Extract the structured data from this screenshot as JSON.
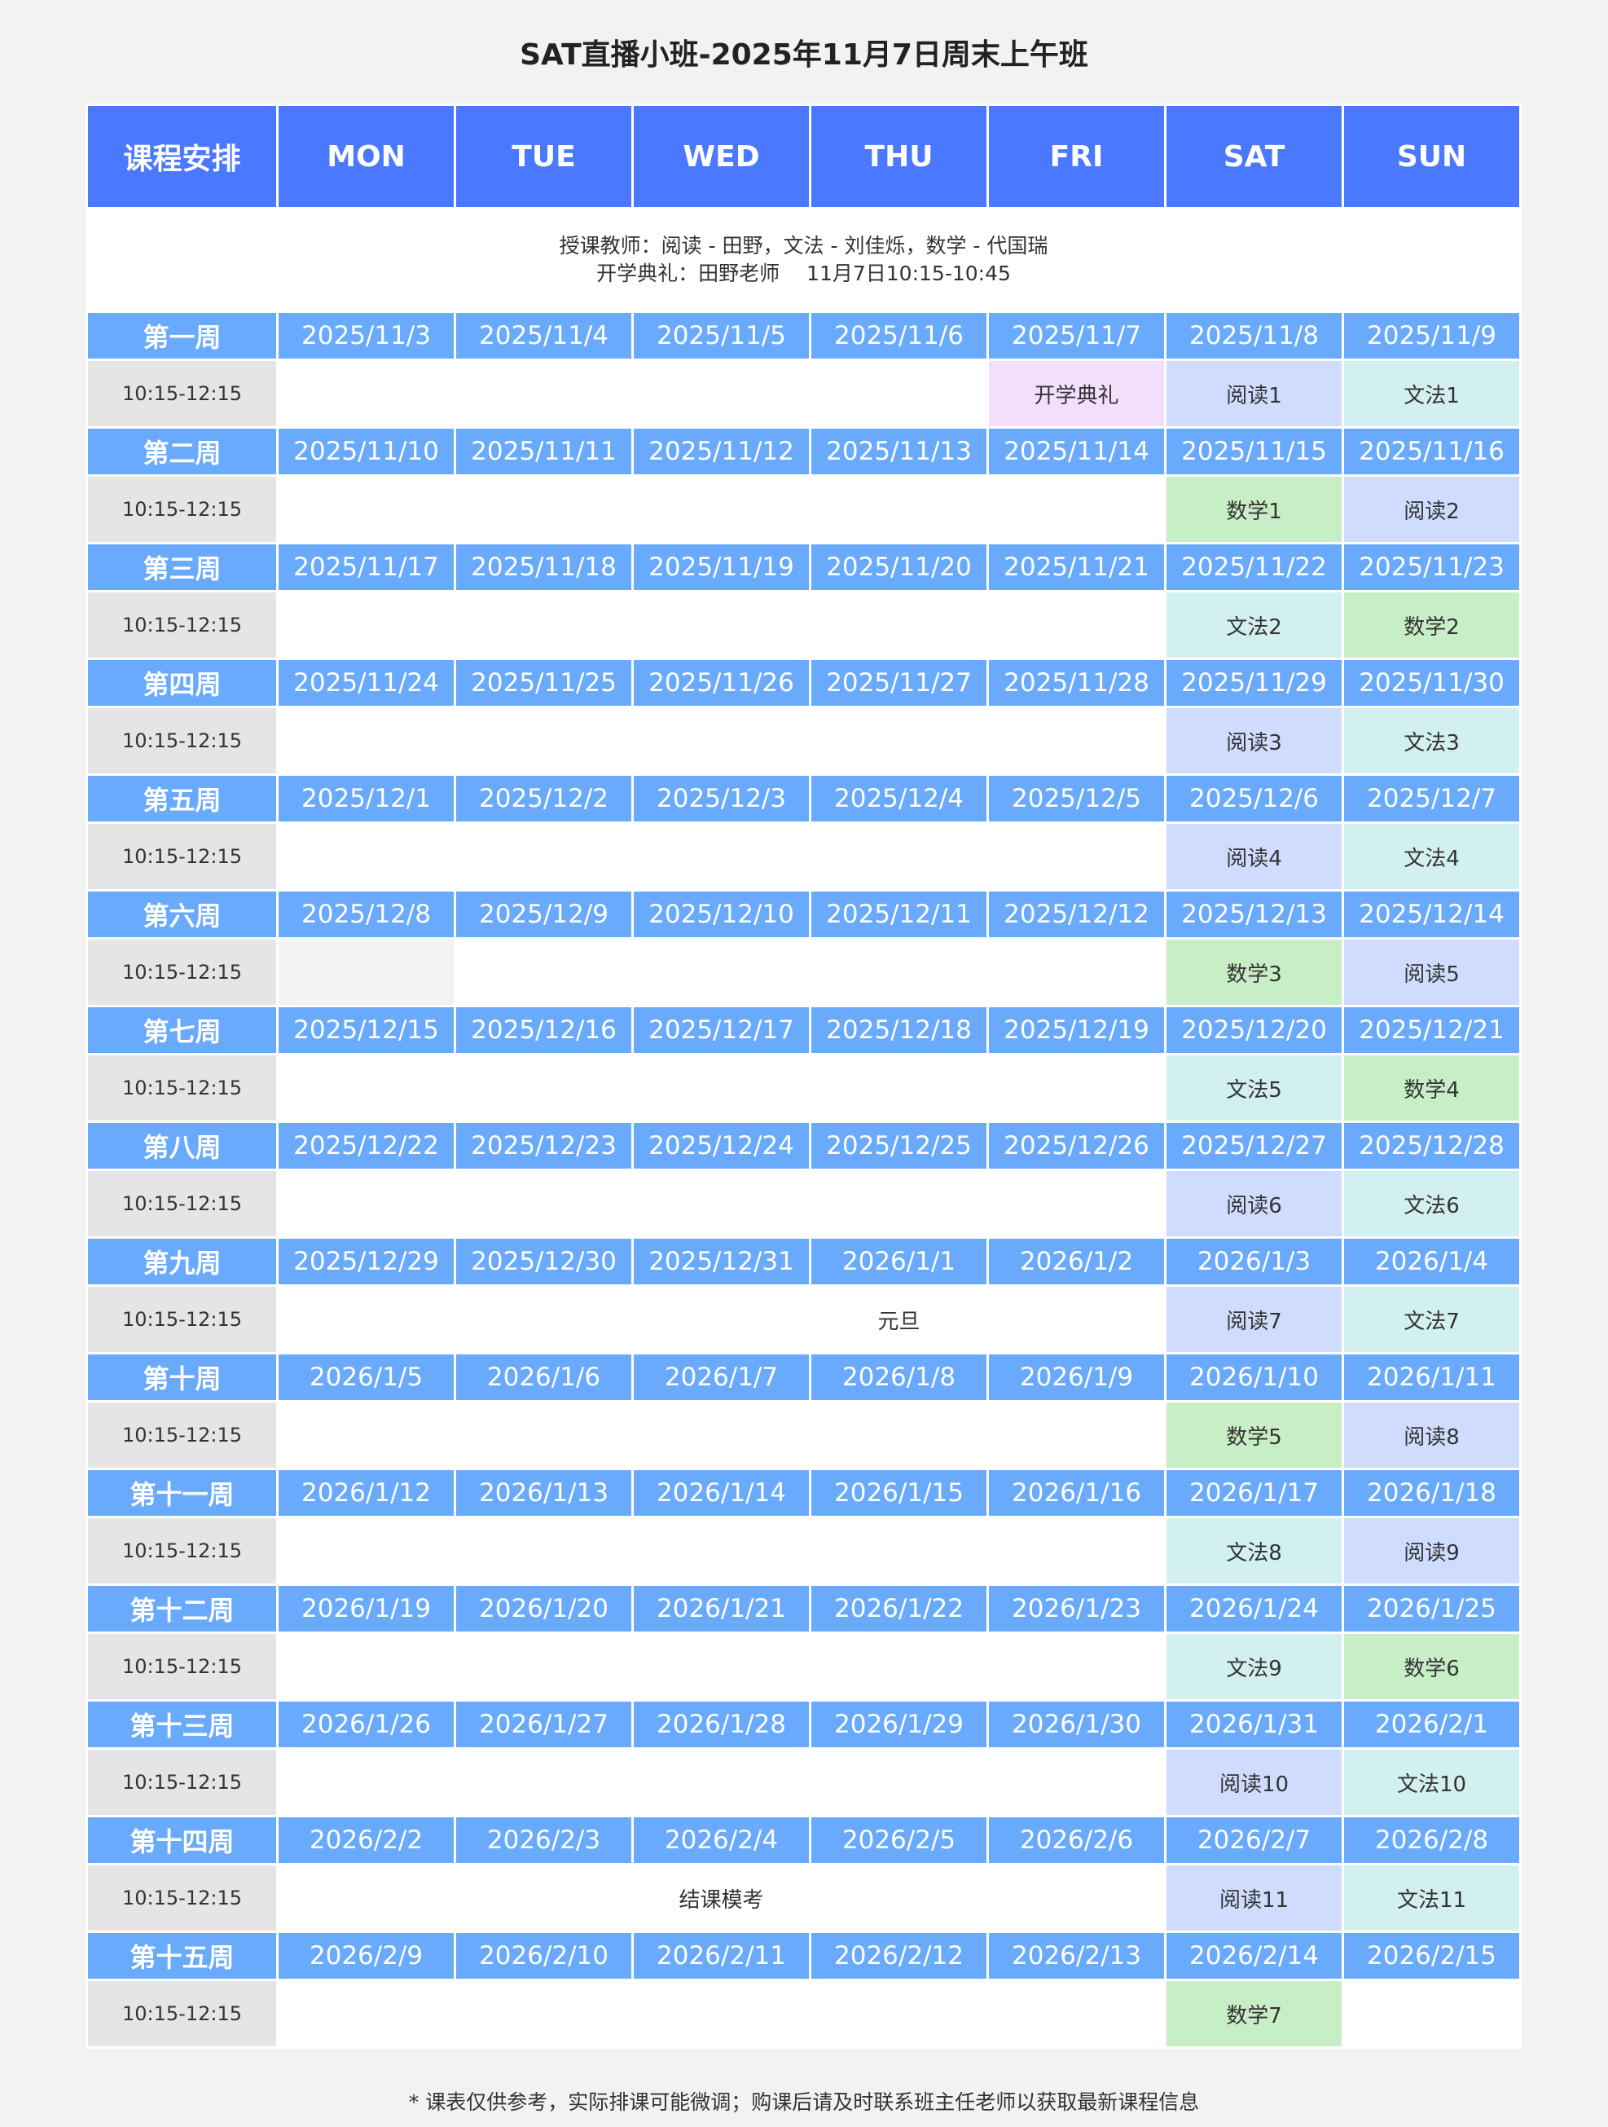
{
  "title": "SAT直播小班-2025年11月7日周末上午班",
  "header": {
    "corner": "课程安排",
    "days": [
      "MON",
      "TUE",
      "WED",
      "THU",
      "FRI",
      "SAT",
      "SUN"
    ]
  },
  "info": {
    "line1": "授课教师：阅读 - 田野，文法 - 刘佳烁，数学 - 代国瑞",
    "line2": "开学典礼：田野老师　 11月7日10:15-10:45"
  },
  "colors": {
    "header": "#4a78ff",
    "date_row": "#69aafd",
    "time_cell": "#e5e5e5",
    "reading": "#cfdcfd",
    "grammar": "#d2f0ef",
    "math": "#c8eec6",
    "ceremony": "#f3defb",
    "blocked": "#f2f2f2"
  },
  "time_slot": "10:15-12:15",
  "weeks": [
    {
      "label": "第一周",
      "dates": [
        "2025/11/3",
        "2025/11/4",
        "2025/11/5",
        "2025/11/6",
        "2025/11/7",
        "2025/11/8",
        "2025/11/9"
      ],
      "cells": [
        "",
        "",
        "",
        "",
        {
          "text": "开学典礼",
          "type": "ceremony"
        },
        {
          "text": "阅读1",
          "type": "reading"
        },
        {
          "text": "文法1",
          "type": "grammar"
        }
      ]
    },
    {
      "label": "第二周",
      "dates": [
        "2025/11/10",
        "2025/11/11",
        "2025/11/12",
        "2025/11/13",
        "2025/11/14",
        "2025/11/15",
        "2025/11/16"
      ],
      "cells": [
        "",
        "",
        "",
        "",
        "",
        {
          "text": "数学1",
          "type": "math"
        },
        {
          "text": "阅读2",
          "type": "reading"
        }
      ]
    },
    {
      "label": "第三周",
      "dates": [
        "2025/11/17",
        "2025/11/18",
        "2025/11/19",
        "2025/11/20",
        "2025/11/21",
        "2025/11/22",
        "2025/11/23"
      ],
      "cells": [
        "",
        "",
        "",
        "",
        "",
        {
          "text": "文法2",
          "type": "grammar"
        },
        {
          "text": "数学2",
          "type": "math"
        }
      ]
    },
    {
      "label": "第四周",
      "dates": [
        "2025/11/24",
        "2025/11/25",
        "2025/11/26",
        "2025/11/27",
        "2025/11/28",
        "2025/11/29",
        "2025/11/30"
      ],
      "cells": [
        "",
        "",
        "",
        "",
        "",
        {
          "text": "阅读3",
          "type": "reading"
        },
        {
          "text": "文法3",
          "type": "grammar"
        }
      ]
    },
    {
      "label": "第五周",
      "dates": [
        "2025/12/1",
        "2025/12/2",
        "2025/12/3",
        "2025/12/4",
        "2025/12/5",
        "2025/12/6",
        "2025/12/7"
      ],
      "cells": [
        "",
        "",
        "",
        "",
        "",
        {
          "text": "阅读4",
          "type": "reading"
        },
        {
          "text": "文法4",
          "type": "grammar"
        }
      ]
    },
    {
      "label": "第六周",
      "dates": [
        "2025/12/8",
        "2025/12/9",
        "2025/12/10",
        "2025/12/11",
        "2025/12/12",
        "2025/12/13",
        "2025/12/14"
      ],
      "cells": [
        {
          "text": "",
          "type": "blocked"
        },
        "",
        "",
        "",
        "",
        {
          "text": "数学3",
          "type": "math"
        },
        {
          "text": "阅读5",
          "type": "reading"
        }
      ]
    },
    {
      "label": "第七周",
      "dates": [
        "2025/12/15",
        "2025/12/16",
        "2025/12/17",
        "2025/12/18",
        "2025/12/19",
        "2025/12/20",
        "2025/12/21"
      ],
      "cells": [
        "",
        "",
        "",
        "",
        "",
        {
          "text": "文法5",
          "type": "grammar"
        },
        {
          "text": "数学4",
          "type": "math"
        }
      ]
    },
    {
      "label": "第八周",
      "dates": [
        "2025/12/22",
        "2025/12/23",
        "2025/12/24",
        "2025/12/25",
        "2025/12/26",
        "2025/12/27",
        "2025/12/28"
      ],
      "cells": [
        "",
        "",
        "",
        "",
        "",
        {
          "text": "阅读6",
          "type": "reading"
        },
        {
          "text": "文法6",
          "type": "grammar"
        }
      ]
    },
    {
      "label": "第九周",
      "dates": [
        "2025/12/29",
        "2025/12/30",
        "2025/12/31",
        "2026/1/1",
        "2026/1/2",
        "2026/1/3",
        "2026/1/4"
      ],
      "cells": [
        "",
        "",
        "",
        {
          "text": "元旦",
          "type": "plain"
        },
        "",
        {
          "text": "阅读7",
          "type": "reading"
        },
        {
          "text": "文法7",
          "type": "grammar"
        }
      ]
    },
    {
      "label": "第十周",
      "dates": [
        "2026/1/5",
        "2026/1/6",
        "2026/1/7",
        "2026/1/8",
        "2026/1/9",
        "2026/1/10",
        "2026/1/11"
      ],
      "cells": [
        "",
        "",
        "",
        "",
        "",
        {
          "text": "数学5",
          "type": "math"
        },
        {
          "text": "阅读8",
          "type": "reading"
        }
      ]
    },
    {
      "label": "第十一周",
      "dates": [
        "2026/1/12",
        "2026/1/13",
        "2026/1/14",
        "2026/1/15",
        "2026/1/16",
        "2026/1/17",
        "2026/1/18"
      ],
      "cells": [
        "",
        "",
        "",
        "",
        "",
        {
          "text": "文法8",
          "type": "grammar"
        },
        {
          "text": "阅读9",
          "type": "reading"
        }
      ]
    },
    {
      "label": "第十二周",
      "dates": [
        "2026/1/19",
        "2026/1/20",
        "2026/1/21",
        "2026/1/22",
        "2026/1/23",
        "2026/1/24",
        "2026/1/25"
      ],
      "cells": [
        "",
        "",
        "",
        "",
        "",
        {
          "text": "文法9",
          "type": "grammar"
        },
        {
          "text": "数学6",
          "type": "math"
        }
      ]
    },
    {
      "label": "第十三周",
      "dates": [
        "2026/1/26",
        "2026/1/27",
        "2026/1/28",
        "2026/1/29",
        "2026/1/30",
        "2026/1/31",
        "2026/2/1"
      ],
      "cells": [
        "",
        "",
        "",
        "",
        "",
        {
          "text": "阅读10",
          "type": "reading"
        },
        {
          "text": "文法10",
          "type": "grammar"
        }
      ]
    },
    {
      "label": "第十四周",
      "dates": [
        "2026/2/2",
        "2026/2/3",
        "2026/2/4",
        "2026/2/5",
        "2026/2/6",
        "2026/2/7",
        "2026/2/8"
      ],
      "cells": [
        {
          "text": "结课模考",
          "type": "plain",
          "span": 5
        },
        {
          "text": "阅读11",
          "type": "reading"
        },
        {
          "text": "文法11",
          "type": "grammar"
        }
      ]
    },
    {
      "label": "第十五周",
      "dates": [
        "2026/2/9",
        "2026/2/10",
        "2026/2/11",
        "2026/2/12",
        "2026/2/13",
        "2026/2/14",
        "2026/2/15"
      ],
      "cells": [
        "",
        "",
        "",
        "",
        "",
        {
          "text": "数学7",
          "type": "math"
        },
        ""
      ]
    }
  ],
  "footer": "* 课表仅供参考，实际排课可能微调；购课后请及时联系班主任老师以获取最新课程信息"
}
